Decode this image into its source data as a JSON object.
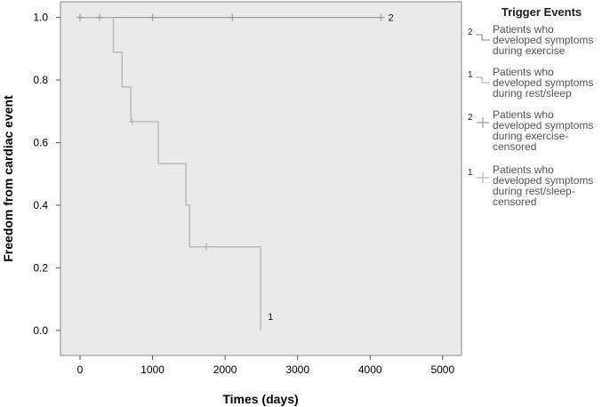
{
  "chart_data": {
    "type": "line",
    "subtype": "kaplan-meier step",
    "xlabel": "Times (days)",
    "ylabel": "Freedom from cardiac event",
    "xlim": [
      -270,
      5260
    ],
    "ylim": [
      -0.08,
      1.05
    ],
    "xticks": [
      0,
      1000,
      2000,
      3000,
      4000,
      5000
    ],
    "yticks": [
      0.0,
      0.2,
      0.4,
      0.6,
      0.8,
      1.0
    ],
    "ytick_labels": [
      "0.0",
      "0.2",
      "0.4",
      "0.6",
      "0.8",
      "1.0"
    ],
    "grid": false,
    "plot_background": "#eaeaea",
    "legend_position": "right",
    "series": [
      {
        "key": "2",
        "name": "Patients who developed symptoms during exercise",
        "color": "#9a9a9a",
        "steps": [
          [
            0,
            1.0
          ],
          [
            4150,
            1.0
          ]
        ],
        "end_label": "2"
      },
      {
        "key": "1",
        "name": "Patients who developed symptoms during rest/sleep",
        "color": "#b4b4b4",
        "steps": [
          [
            0,
            1.0
          ],
          [
            460,
            1.0
          ],
          [
            460,
            0.889
          ],
          [
            580,
            0.889
          ],
          [
            580,
            0.778
          ],
          [
            700,
            0.778
          ],
          [
            700,
            0.667
          ],
          [
            1080,
            0.667
          ],
          [
            1080,
            0.533
          ],
          [
            1460,
            0.533
          ],
          [
            1460,
            0.4
          ],
          [
            1510,
            0.4
          ],
          [
            1510,
            0.267
          ],
          [
            2490,
            0.267
          ],
          [
            2490,
            0.0
          ]
        ],
        "end_label": "1"
      }
    ],
    "censored": [
      {
        "key": "2",
        "name": "Patients who developed symptoms during exercise-censored",
        "x": [
          0,
          270,
          1000,
          2100,
          4150
        ],
        "y": [
          1.0,
          1.0,
          1.0,
          1.0,
          1.0
        ]
      },
      {
        "key": "1",
        "name": "Patients who developed symptoms during rest/sleep-censored",
        "x": [
          720,
          1740
        ],
        "y": [
          0.667,
          0.267
        ]
      }
    ],
    "legend": {
      "title": "Trigger Events",
      "items": [
        {
          "key": "2",
          "lines": [
            "Patients who",
            "developed symptoms",
            "during exercise"
          ],
          "glyph": "step",
          "color": "#9a9a9a"
        },
        {
          "key": "1",
          "lines": [
            "Patients who",
            "developed symptoms",
            "during rest/sleep"
          ],
          "glyph": "step",
          "color": "#b4b4b4"
        },
        {
          "key": "2",
          "lines": [
            "Patients who",
            "developed symptoms",
            "during exercise-",
            "censored"
          ],
          "glyph": "plus",
          "color": "#9a9a9a"
        },
        {
          "key": "1",
          "lines": [
            "Patients who",
            "developed symptoms",
            "during rest/sleep-",
            "censored"
          ],
          "glyph": "plus",
          "color": "#b4b4b4"
        }
      ]
    }
  }
}
